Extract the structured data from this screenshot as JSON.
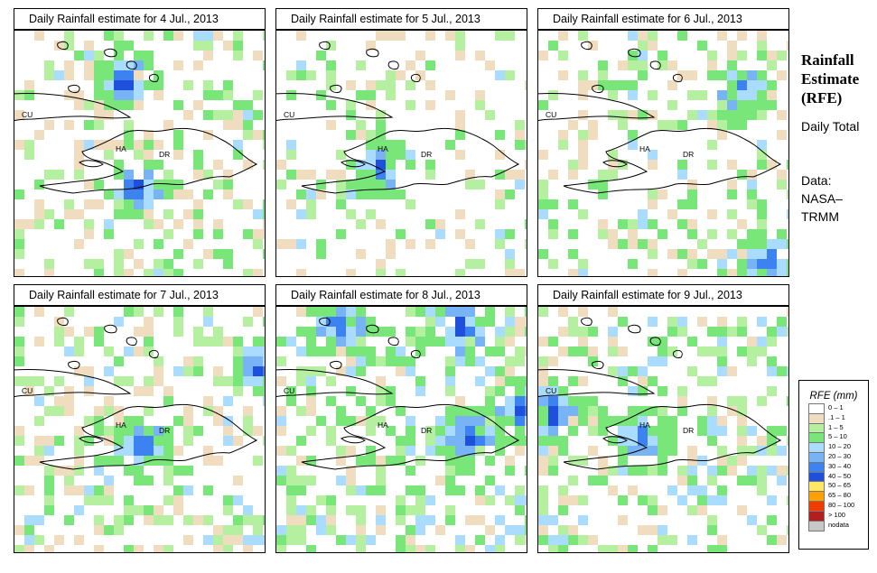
{
  "panels": [
    {
      "title": "Daily Rainfall estimate for  4 Jul., 2013"
    },
    {
      "title": "Daily Rainfall estimate for  5 Jul., 2013"
    },
    {
      "title": "Daily Rainfall estimate for  6 Jul., 2013"
    },
    {
      "title": "Daily Rainfall estimate for  7 Jul., 2013"
    },
    {
      "title": "Daily Rainfall estimate for  8 Jul., 2013"
    },
    {
      "title": "Daily Rainfall estimate for  9 Jul., 2013"
    }
  ],
  "map_labels": {
    "cuba": "CU",
    "haiti": "HA",
    "dominican_republic": "DR"
  },
  "sidebar": {
    "title": "Rainfall Estimate (RFE)",
    "subtitle": "Daily Total",
    "source_label": "Data:",
    "source": "NASA–TRMM"
  },
  "legend": {
    "title": "RFE (mm)",
    "items": [
      {
        "label": "0 – 1",
        "color": "#ffffff"
      },
      {
        "label": ".1 – 1",
        "color": "#f0dcbe"
      },
      {
        "label": "1 – 5",
        "color": "#b4f0a0"
      },
      {
        "label": "5 – 10",
        "color": "#78e678"
      },
      {
        "label": "10 – 20",
        "color": "#aadcff"
      },
      {
        "label": "20 – 30",
        "color": "#78b4f5"
      },
      {
        "label": "30 – 40",
        "color": "#3c82f0"
      },
      {
        "label": "40 – 50",
        "color": "#1e50dc"
      },
      {
        "label": "50 – 65",
        "color": "#ffe664"
      },
      {
        "label": "65 – 80",
        "color": "#ffa000"
      },
      {
        "label": "80 – 100",
        "color": "#f03c00"
      },
      {
        "label": "> 100",
        "color": "#b41e1e"
      },
      {
        "label": "nodata",
        "color": "#c8c8c8"
      }
    ]
  }
}
